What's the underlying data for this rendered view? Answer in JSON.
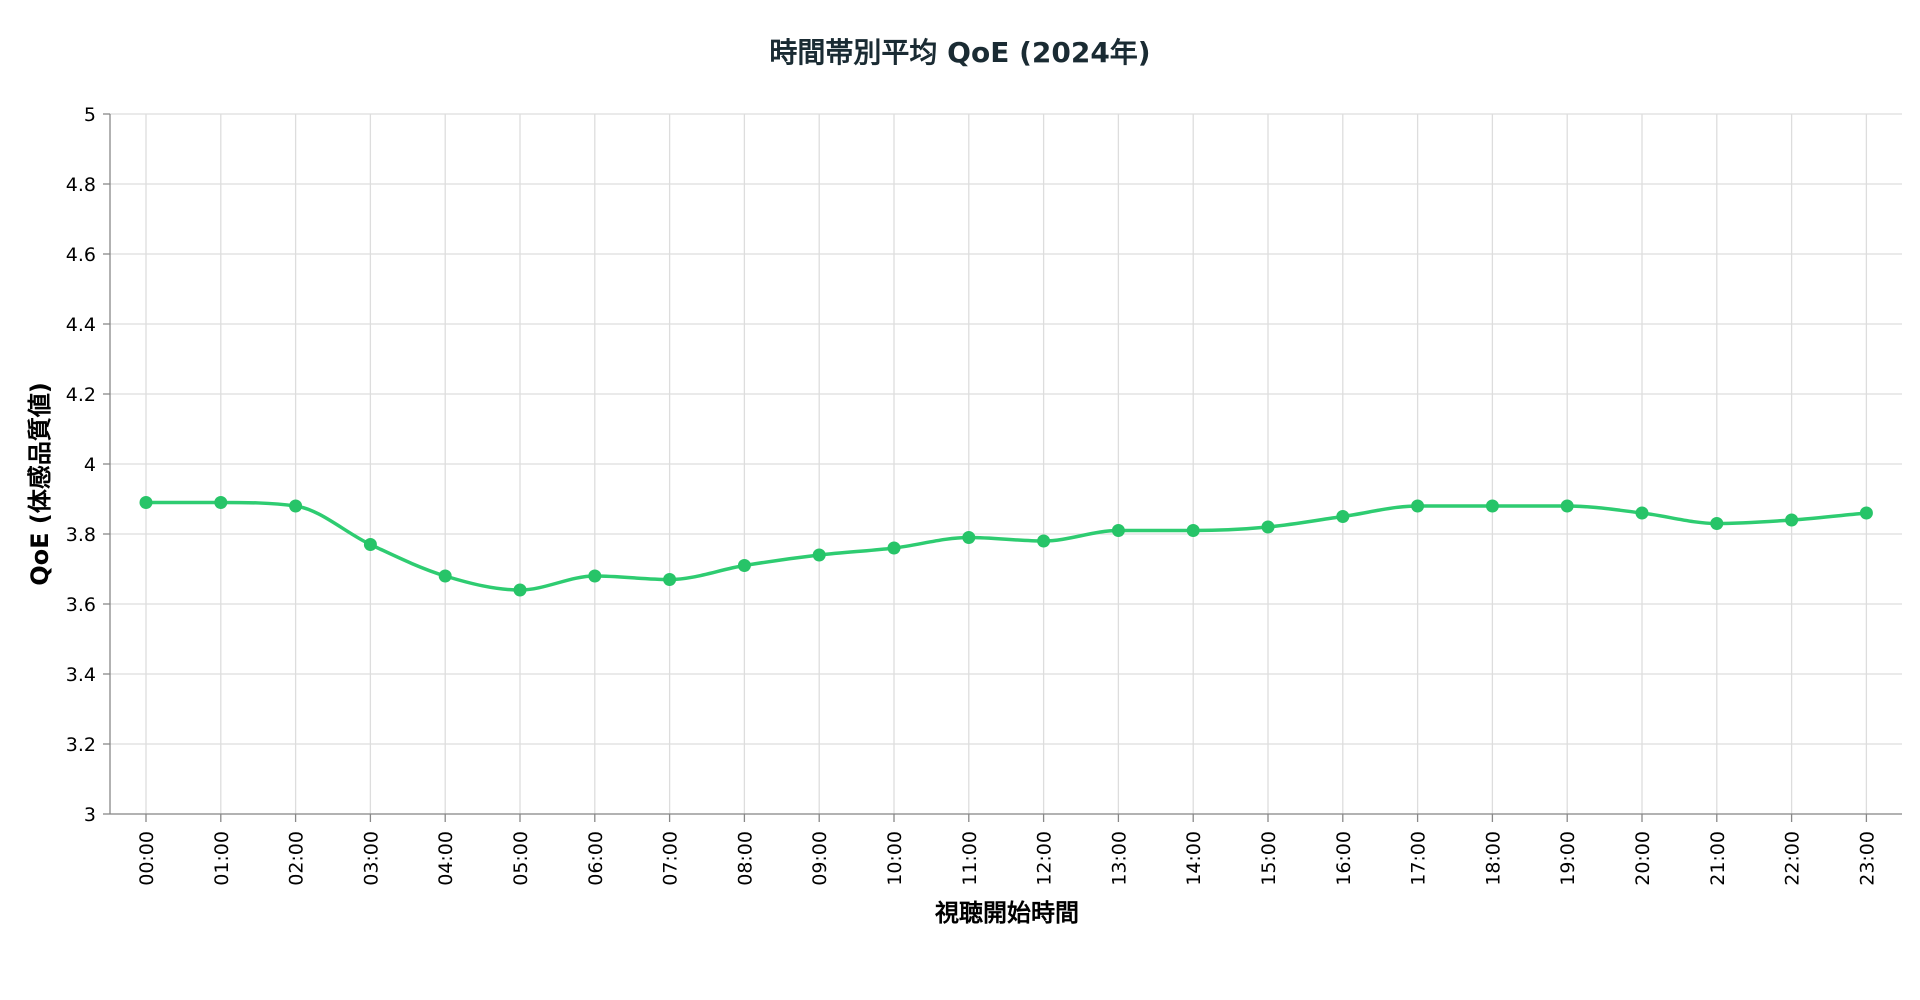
{
  "chart_data": {
    "type": "line",
    "title": "時間帯別平均 QoE (2024年)",
    "xlabel": "視聴開始時間",
    "ylabel": "QoE (体感品質値)",
    "categories": [
      "00:00",
      "01:00",
      "02:00",
      "03:00",
      "04:00",
      "05:00",
      "06:00",
      "07:00",
      "08:00",
      "09:00",
      "10:00",
      "11:00",
      "12:00",
      "13:00",
      "14:00",
      "15:00",
      "16:00",
      "17:00",
      "18:00",
      "19:00",
      "20:00",
      "21:00",
      "22:00",
      "23:00"
    ],
    "series": [
      {
        "values": [
          3.89,
          3.89,
          3.88,
          3.77,
          3.68,
          3.64,
          3.68,
          3.67,
          3.71,
          3.74,
          3.76,
          3.79,
          3.78,
          3.81,
          3.81,
          3.82,
          3.85,
          3.88,
          3.88,
          3.88,
          3.86,
          3.83,
          3.84,
          3.86
        ]
      }
    ],
    "ylim": [
      3,
      5
    ],
    "yticks": [
      "3",
      "3.2",
      "3.4",
      "3.6",
      "3.8",
      "4",
      "4.2",
      "4.4",
      "4.6",
      "4.8",
      "5"
    ],
    "grid": true,
    "line_color": "#2ecc71",
    "point_color": "#27c468"
  }
}
